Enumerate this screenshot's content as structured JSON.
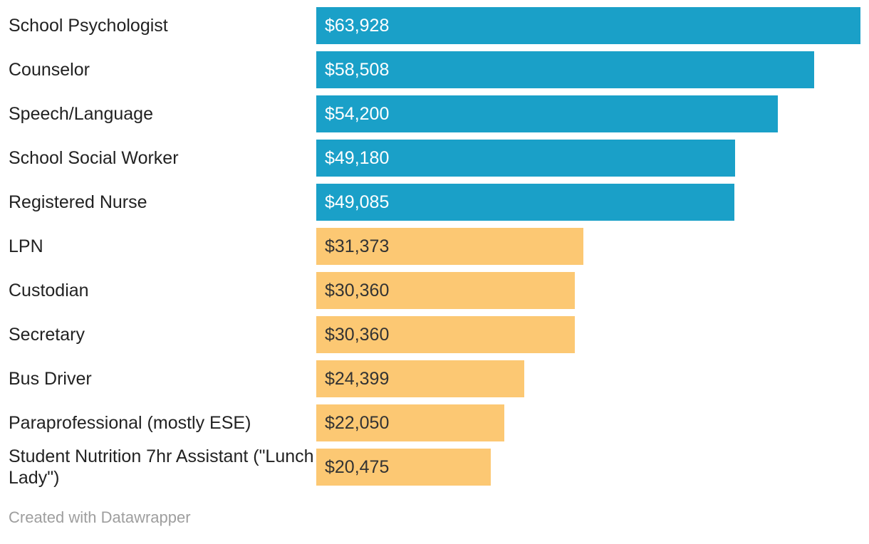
{
  "chart_data": {
    "type": "bar",
    "orientation": "horizontal",
    "title": "",
    "xlabel": "",
    "ylabel": "",
    "xlim": [
      0,
      63928
    ],
    "grid": false,
    "legend": false,
    "categories": [
      "School Psychologist",
      "Counselor",
      "Speech/Language",
      "School Social Worker",
      "Registered Nurse",
      "LPN",
      "Custodian",
      "Secretary",
      "Bus Driver",
      "Paraprofessional (mostly ESE)",
      "Student Nutrition 7hr Assistant (\"Lunch Lady\")"
    ],
    "values": [
      63928,
      58508,
      54200,
      49180,
      49085,
      31373,
      30360,
      30360,
      24399,
      22050,
      20475
    ],
    "value_labels": [
      "$63,928",
      "$58,508",
      "$54,200",
      "$49,180",
      "$49,085",
      "$31,373",
      "$30,360",
      "$30,360",
      "$24,399",
      "$22,050",
      "$20,475"
    ],
    "groups": [
      "high",
      "high",
      "high",
      "high",
      "high",
      "low",
      "low",
      "low",
      "low",
      "low",
      "low"
    ],
    "colors": {
      "high": "#1AA0C8",
      "low": "#FCC873"
    },
    "value_text_colors": {
      "high": "#ffffff",
      "low": "#333333"
    }
  },
  "footer": {
    "credit": "Created with Datawrapper"
  }
}
